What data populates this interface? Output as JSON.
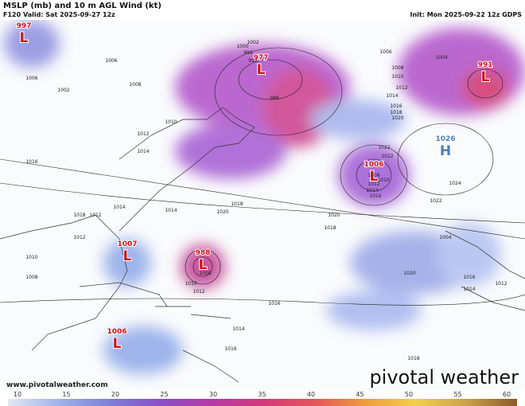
{
  "header": {
    "title": "MSLP (mb) and 10 m AGL Wind (kt)",
    "valid": "F120 Valid: Sat 2025-09-27 12z",
    "init": "Init: Mon 2025-09-22 12z GDPS"
  },
  "centers": [
    {
      "letter": "L",
      "value": "997"
    },
    {
      "letter": "L",
      "value": "977"
    },
    {
      "letter": "L",
      "value": "991"
    },
    {
      "letter": "H",
      "value": "1026"
    },
    {
      "letter": "L",
      "value": "1006"
    },
    {
      "letter": "L",
      "value": "1007"
    },
    {
      "letter": "L",
      "value": "988"
    },
    {
      "letter": "L",
      "value": "1006"
    }
  ],
  "isobars": [
    "1006",
    "1002",
    "1006",
    "1008",
    "1010",
    "1012",
    "1014",
    "1016",
    "1018",
    "1014",
    "1012",
    "1010",
    "1008",
    "1002",
    "1000",
    "996",
    "992",
    "988",
    "1004",
    "1006",
    "1008",
    "1010",
    "1012",
    "1014",
    "1016",
    "1018",
    "1020",
    "1022",
    "1024",
    "1022",
    "1020",
    "1018",
    "1016",
    "1014",
    "1012",
    "1010",
    "1008",
    "1004",
    "1018",
    "1020",
    "1014",
    "1016",
    "1012",
    "1010",
    "1008",
    "1012",
    "1014",
    "1016",
    "1018",
    "1020",
    "1022",
    "1016",
    "1014",
    "1012"
  ],
  "colorbar": {
    "ticks": [
      "10",
      "15",
      "20",
      "25",
      "30",
      "35",
      "40",
      "45",
      "50",
      "55",
      "60"
    ]
  },
  "footer": {
    "website": "www.pivotalweather.com",
    "logo": "pivotal weather"
  }
}
